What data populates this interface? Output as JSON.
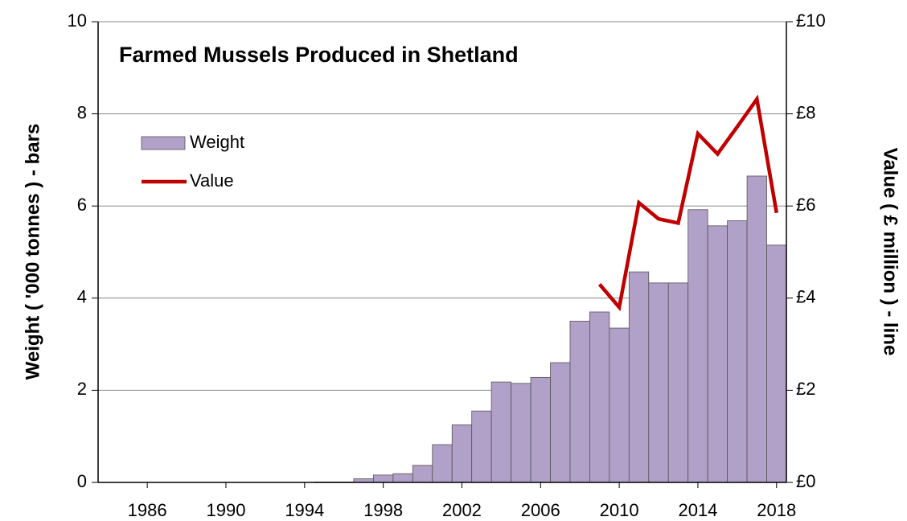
{
  "chart_data": {
    "type": "bar",
    "title": "Farmed Mussels Produced in Shetland",
    "y_label": "Weight ( '000 tonnes ) - bars",
    "y2_label": "Value ( £ million ) - line",
    "x": [
      1984,
      1985,
      1986,
      1987,
      1988,
      1989,
      1990,
      1991,
      1992,
      1993,
      1994,
      1995,
      1996,
      1997,
      1998,
      1999,
      2000,
      2001,
      2002,
      2003,
      2004,
      2005,
      2006,
      2007,
      2008,
      2009,
      2010,
      2011,
      2012,
      2013,
      2014,
      2015,
      2016,
      2017,
      2018
    ],
    "series": [
      {
        "name": "Weight",
        "type": "bar",
        "color": "#b1a0c7",
        "values": [
          0,
          0,
          0,
          0,
          0,
          0,
          0,
          0,
          0,
          0,
          0,
          0.01,
          0.01,
          0.08,
          0.16,
          0.19,
          0.37,
          0.82,
          1.25,
          1.55,
          2.18,
          2.15,
          2.28,
          2.6,
          3.5,
          3.7,
          3.35,
          4.57,
          4.33,
          4.33,
          5.92,
          5.57,
          5.68,
          6.65,
          5.15
        ]
      },
      {
        "name": "Value",
        "type": "line",
        "axis": "y2",
        "color": "#c00000",
        "values": [
          null,
          null,
          null,
          null,
          null,
          null,
          null,
          null,
          null,
          null,
          null,
          null,
          null,
          null,
          null,
          null,
          null,
          null,
          null,
          null,
          null,
          null,
          null,
          null,
          null,
          4.3,
          3.8,
          6.07,
          5.72,
          5.63,
          7.57,
          7.13,
          7.72,
          8.32,
          5.85
        ]
      }
    ],
    "xlim": [
      1983.5,
      2018.5
    ],
    "xticks": [
      1986,
      1990,
      1994,
      1998,
      2002,
      2006,
      2010,
      2014,
      2018
    ],
    "ylim": [
      0,
      10
    ],
    "yticks": [
      0,
      2,
      4,
      6,
      8,
      10
    ],
    "y2lim": [
      0,
      10
    ],
    "y2ticks": [
      {
        "value": 0,
        "label": "£0"
      },
      {
        "value": 2,
        "label": "£2"
      },
      {
        "value": 4,
        "label": "£4"
      },
      {
        "value": 6,
        "label": "£6"
      },
      {
        "value": 8,
        "label": "£8"
      },
      {
        "value": 10,
        "label": "£10"
      }
    ],
    "grid": true,
    "legend": "upper left"
  }
}
